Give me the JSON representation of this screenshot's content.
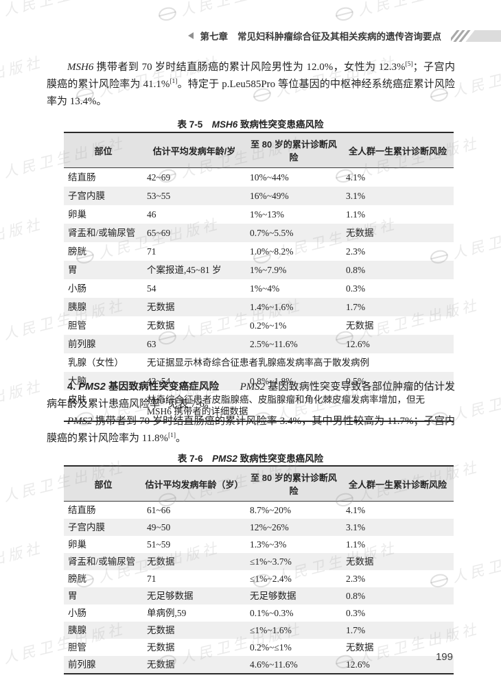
{
  "header": {
    "chapter": "第七章",
    "title": "常见妇科肿瘤综合征及其相关疾病的遗传咨询要点"
  },
  "watermark": {
    "text": "人民卫生出版社"
  },
  "paragraphs": {
    "msh6_risk": [
      {
        "t": "MSH6",
        "s": "i"
      },
      {
        "t": " 携带者到 70 岁时结直肠癌的累计风险男性为 12.0%，女性为 12.3%"
      },
      {
        "t": "[5]",
        "s": "sup"
      },
      {
        "t": "；子宫内膜癌的累计风险率为 41.1%"
      },
      {
        "t": "[1]",
        "s": "sup"
      },
      {
        "t": "。特定于 p.Leu585Pro 等位基因的中枢神经系统癌症累计风险率为 13.4%。"
      }
    ],
    "pms2_heading": [
      {
        "t": "4. ",
        "s": "hb"
      },
      {
        "t": "PMS2",
        "s": "hbi"
      },
      {
        "t": " 基因致病性突变癌症风险",
        "s": "hb"
      },
      {
        "t": "　　"
      },
      {
        "t": "PMS2",
        "s": "i"
      },
      {
        "t": " 基因致病性突变导致各部位肿瘤的估计发病年龄及累计患癌风险率"
      },
      {
        "t": "[4]",
        "s": "sup"
      },
      {
        "t": "见表 7-6。"
      }
    ],
    "pms2_risk": [
      {
        "t": "PMS2",
        "s": "i"
      },
      {
        "t": " 携带者到 70 岁时结直肠癌的累计风险率 3.4%，其中男性较高为 11.7%；子宫内膜癌的累计风险率为 11.8%"
      },
      {
        "t": "[1]",
        "s": "sup"
      },
      {
        "t": "。"
      }
    ]
  },
  "tables": {
    "t75": {
      "caption": [
        {
          "t": "表 7-5　"
        },
        {
          "t": "MSH6",
          "s": "i"
        },
        {
          "t": " 致病性突变患癌风险"
        }
      ],
      "columns": [
        "部位",
        "估计平均发病年龄/岁",
        "至 80 岁的累计诊断风险",
        "全人群一生累计诊断风险"
      ],
      "rows": [
        {
          "site": "结直肠",
          "age": "42~69",
          "risk80": "10%~44%",
          "lifetime": "4.1%"
        },
        {
          "site": "子宫内膜",
          "age": "53~55",
          "risk80": "16%~49%",
          "lifetime": "3.1%"
        },
        {
          "site": "卵巢",
          "age": "46",
          "risk80": "1%~13%",
          "lifetime": "1.1%"
        },
        {
          "site": "肾盂和/或输尿管",
          "age": "65~69",
          "risk80": "0.7%~5.5%",
          "lifetime": "无数据"
        },
        {
          "site": "膀胱",
          "age": "71",
          "risk80": "1.0%~8.2%",
          "lifetime": "2.3%"
        },
        {
          "site": "胃",
          "age": "个案报道,45~81 岁",
          "risk80": "1%~7.9%",
          "lifetime": "0.8%"
        },
        {
          "site": "小肠",
          "age": "54",
          "risk80": "1%~4%",
          "lifetime": "0.3%"
        },
        {
          "site": "胰腺",
          "age": "无数据",
          "risk80": "1.4%~1.6%",
          "lifetime": "1.7%"
        },
        {
          "site": "胆管",
          "age": "无数据",
          "risk80": "0.2%~1%",
          "lifetime": "无数据"
        },
        {
          "site": "前列腺",
          "age": "63",
          "risk80": "2.5%~11.6%",
          "lifetime": "12.6%"
        },
        {
          "site": "乳腺（女性）",
          "span": "无证据显示林奇综合征患者乳腺癌发病率高于散发病例"
        },
        {
          "site": "大脑",
          "age": "43~54",
          "risk80": "0.8%~1.8%",
          "lifetime": "0.5%"
        },
        {
          "site": "皮肤",
          "span": "林奇综合征患者皮脂腺癌、皮脂腺瘤和角化棘皮瘤发病率增加，但无 MSH6 携带者的详细数据"
        }
      ]
    },
    "t76": {
      "caption": [
        {
          "t": "表 7-6　"
        },
        {
          "t": "PMS2",
          "s": "i"
        },
        {
          "t": " 致病性突变患癌风险"
        }
      ],
      "columns": [
        "部位",
        "估计平均发病年龄（岁）",
        "至 80 岁的累计诊断风险",
        "全人群一生累计诊断风险"
      ],
      "rows": [
        {
          "site": "结直肠",
          "age": "61~66",
          "risk80": "8.7%~20%",
          "lifetime": "4.1%"
        },
        {
          "site": "子宫内膜",
          "age": "49~50",
          "risk80": "12%~26%",
          "lifetime": "3.1%"
        },
        {
          "site": "卵巢",
          "age": "51~59",
          "risk80": "1.3%~3%",
          "lifetime": "1.1%"
        },
        {
          "site": "肾盂和/或输尿管",
          "age": "无数据",
          "risk80": "≤1%~3.7%",
          "lifetime": "无数据"
        },
        {
          "site": "膀胱",
          "age": "71",
          "risk80": "≤1%~2.4%",
          "lifetime": "2.3%"
        },
        {
          "site": "胃",
          "age": "无足够数据",
          "risk80": "无足够数据",
          "lifetime": "0.8%"
        },
        {
          "site": "小肠",
          "age": "单病例,59",
          "risk80": "0.1%~0.3%",
          "lifetime": "0.3%"
        },
        {
          "site": "胰腺",
          "age": "无数据",
          "risk80": "≤1%~1.6%",
          "lifetime": "1.7%"
        },
        {
          "site": "胆管",
          "age": "无数据",
          "risk80": "0.2%~≤1%",
          "lifetime": "无数据"
        },
        {
          "site": "前列腺",
          "age": "无数据",
          "risk80": "4.6%~11.6%",
          "lifetime": "12.6%"
        }
      ]
    }
  },
  "footer": {
    "page_number": "199"
  }
}
